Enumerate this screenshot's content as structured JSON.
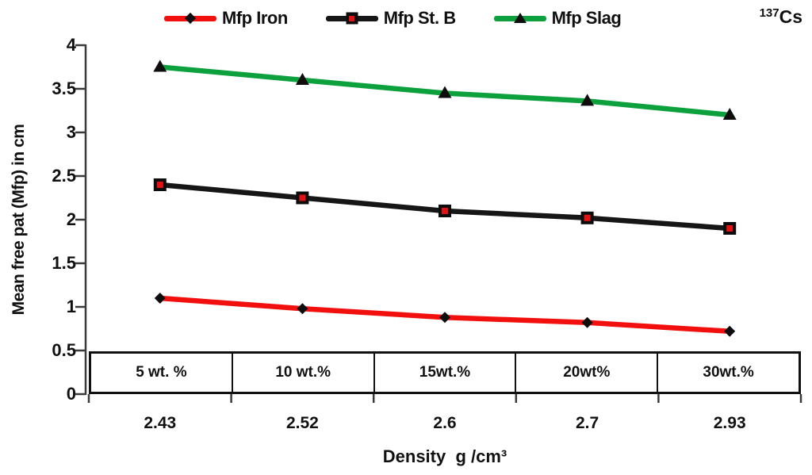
{
  "annotation": {
    "mass": "137",
    "symbol": "Cs"
  },
  "legend": [
    {
      "label": "Mfp Iron",
      "line_color": "#f2100f",
      "marker": "diamond",
      "marker_color": "#0d0d0d"
    },
    {
      "label": "Mfp St. B",
      "line_color": "#161616",
      "marker": "square",
      "marker_color": "#e01212"
    },
    {
      "label": "Mfp Slag",
      "line_color": "#0da13e",
      "marker": "triangle",
      "marker_color": "#0d0d0d"
    }
  ],
  "chart_data": {
    "type": "line",
    "title": "",
    "x": [
      2.43,
      2.52,
      2.6,
      2.7,
      2.93
    ],
    "x_tick_labels": [
      "2.43",
      "2.52",
      "2.6",
      "2.7",
      "2.93"
    ],
    "category_boxes": [
      "5 wt. %",
      "10 wt.%",
      "15wt.%",
      "20wt%",
      "30wt.%"
    ],
    "series": [
      {
        "name": "Mfp Iron",
        "color": "#f2100f",
        "marker": "diamond",
        "values": [
          1.1,
          0.98,
          0.88,
          0.82,
          0.72
        ]
      },
      {
        "name": "Mfp St. B",
        "color": "#161616",
        "marker": "square",
        "values": [
          2.4,
          2.25,
          2.1,
          2.02,
          1.9
        ]
      },
      {
        "name": "Mfp Slag",
        "color": "#0da13e",
        "marker": "triangle",
        "values": [
          3.75,
          3.6,
          3.45,
          3.36,
          3.2
        ]
      }
    ],
    "ylabel": "Mean free pat (Mfp) in cm",
    "xlabel": "Density  g /cm³",
    "ylim": [
      0,
      4
    ],
    "ytick_step": 0.5,
    "ytick_labels": [
      "4",
      "3.5",
      "3",
      "2.5",
      "2",
      "1.5",
      "1",
      "0.5",
      "0"
    ],
    "legend_position": "top",
    "grid": false
  }
}
